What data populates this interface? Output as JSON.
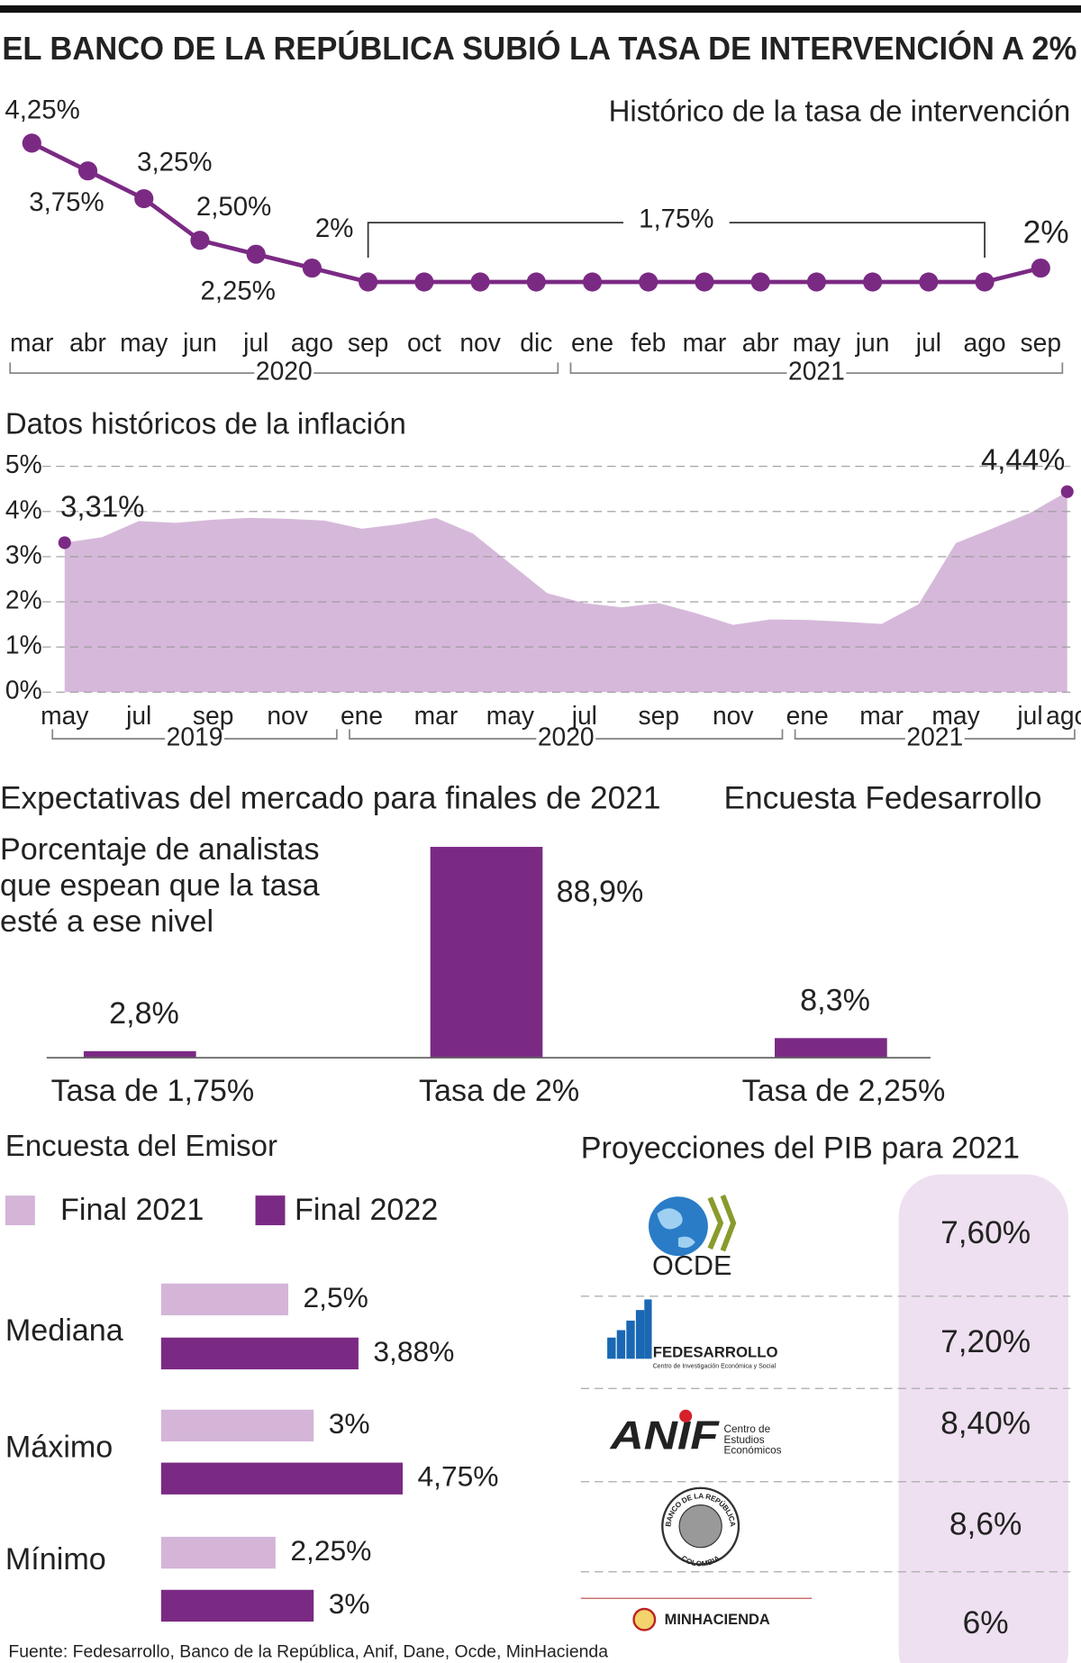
{
  "title": "EL BANCO DE LA REPÚBLICA SUBIÓ LA TASA DE INTERVENCIÓN A 2%",
  "source": "Fuente: Fedesarrollo, Banco de la República, Anif, Dane, Ocde, MinHacienda",
  "chart_data": [
    {
      "type": "line",
      "title": "Histórico de la tasa de intervención",
      "categories": [
        "mar",
        "abr",
        "may",
        "jun",
        "jul",
        "ago",
        "sep",
        "oct",
        "nov",
        "dic",
        "ene",
        "feb",
        "mar",
        "abr",
        "may",
        "jun",
        "jul",
        "ago",
        "sep"
      ],
      "years": [
        "2020",
        "2020",
        "2020",
        "2020",
        "2020",
        "2020",
        "2020",
        "2020",
        "2020",
        "2020",
        "2021",
        "2021",
        "2021",
        "2021",
        "2021",
        "2021",
        "2021",
        "2021",
        "2021"
      ],
      "values": [
        4.25,
        3.75,
        3.25,
        2.5,
        2.25,
        2,
        1.75,
        1.75,
        1.75,
        1.75,
        1.75,
        1.75,
        1.75,
        1.75,
        1.75,
        1.75,
        1.75,
        1.75,
        2
      ],
      "value_labels": [
        "4,25%",
        "3,75%",
        "3,25%",
        "2,50%",
        "2,25%",
        "2%",
        null,
        null,
        null,
        null,
        null,
        null,
        null,
        null,
        null,
        null,
        null,
        null,
        "2%"
      ],
      "bracket_label": "1,75%",
      "color": "#7b2a84"
    },
    {
      "type": "area",
      "title": "Datos históricos de la inflación",
      "categories": [
        "may",
        null,
        "jul",
        null,
        "sep",
        null,
        "nov",
        null,
        "ene",
        null,
        "mar",
        null,
        "may",
        null,
        "jul",
        null,
        "sep",
        null,
        "nov",
        null,
        "ene",
        null,
        "mar",
        null,
        "may",
        null,
        "jul",
        "ago"
      ],
      "years": [
        "2019",
        "2019",
        "2019",
        "2019",
        "2019",
        "2019",
        "2019",
        "2019",
        "2020",
        "2020",
        "2020",
        "2020",
        "2020",
        "2020",
        "2020",
        "2020",
        "2020",
        "2020",
        "2020",
        "2020",
        "2021",
        "2021",
        "2021",
        "2021",
        "2021",
        "2021",
        "2021",
        "2021"
      ],
      "values": [
        3.31,
        3.43,
        3.79,
        3.75,
        3.82,
        3.86,
        3.84,
        3.8,
        3.62,
        3.72,
        3.86,
        3.51,
        2.85,
        2.19,
        1.97,
        1.88,
        1.97,
        1.75,
        1.49,
        1.61,
        1.6,
        1.56,
        1.51,
        1.95,
        3.3,
        3.63,
        3.97,
        4.44
      ],
      "value_labels": [
        "3,31%",
        null,
        null,
        null,
        null,
        null,
        null,
        null,
        null,
        null,
        null,
        null,
        null,
        null,
        null,
        null,
        null,
        null,
        null,
        null,
        null,
        null,
        null,
        null,
        null,
        null,
        null,
        "4,44%"
      ],
      "ylim": [
        0,
        5
      ],
      "yticks": [
        {
          "value": 0,
          "label": "0%"
        },
        {
          "value": 1,
          "label": "1%"
        },
        {
          "value": 2,
          "label": "2%"
        },
        {
          "value": 3,
          "label": "3%"
        },
        {
          "value": 4,
          "label": "4%"
        },
        {
          "value": 5,
          "label": "5%"
        }
      ],
      "grid": true,
      "color": "#d4b5d8",
      "marker_color": "#7b2a84"
    },
    {
      "type": "bar",
      "title": "Expectativas del mercado para finales de 2021",
      "subtitle": "Encuesta Fedesarrollo",
      "note": [
        "Porcentaje de analistas",
        "que espean que la tasa",
        "esté a ese nivel"
      ],
      "categories": [
        "Tasa de 1,75%",
        "Tasa de 2%",
        "Tasa de 2,25%"
      ],
      "values": [
        2.8,
        88.9,
        8.3
      ],
      "value_labels": [
        "2,8%",
        "88,9%",
        "8,3%"
      ],
      "color": "#7b2a84"
    },
    {
      "type": "hbar",
      "title": "Encuesta del Emisor",
      "categories": [
        "Mediana",
        "Máximo",
        "Mínimo"
      ],
      "series": [
        {
          "name": "Final 2021",
          "color": "#d4b5d8",
          "values": [
            2.5,
            3,
            2.25
          ],
          "value_labels": [
            "2,5%",
            "3%",
            "2,25%"
          ]
        },
        {
          "name": "Final 2022",
          "color": "#7b2a84",
          "values": [
            3.88,
            4.75,
            3
          ],
          "value_labels": [
            "3,88%",
            "4,75%",
            "3%"
          ]
        }
      ]
    }
  ],
  "gdp_projections": {
    "title": "Proyecciones del PIB para 2021",
    "rows": [
      {
        "logo": "OCDE",
        "value": "7,60%"
      },
      {
        "logo": "FEDESARROLLO",
        "logo_subtitle": "Centro de Investigación Económica y Social",
        "value": "7,20%"
      },
      {
        "logo": "ANIF",
        "logo_subtitle": [
          "Centro de",
          "Estudios",
          "Económicos"
        ],
        "value": "8,40%"
      },
      {
        "logo": "BANCO DE LA REPÚBLICA",
        "logo_subtitle": "COLOMBIA",
        "value": "8,6%"
      },
      {
        "logo": "MINHACIENDA",
        "value": "6%"
      }
    ]
  }
}
